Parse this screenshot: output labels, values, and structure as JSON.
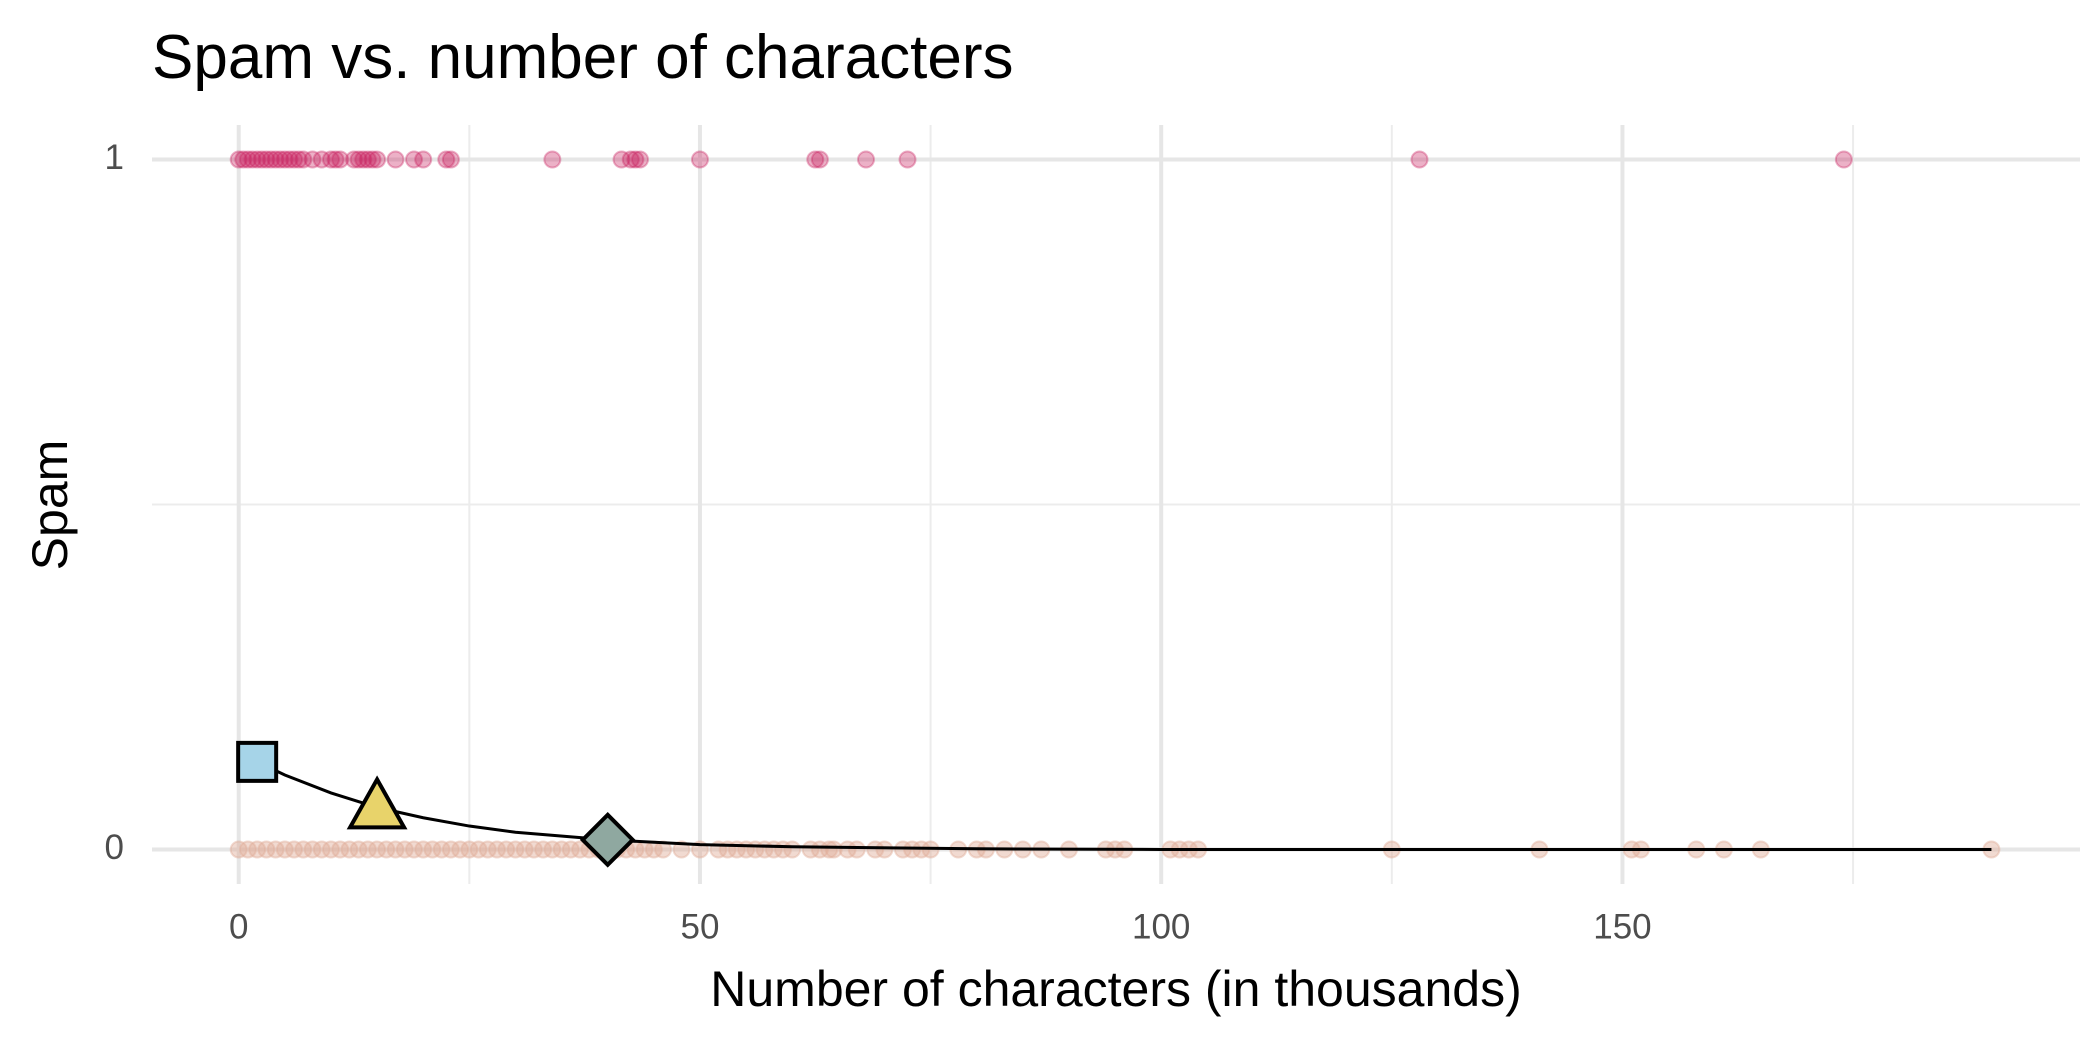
{
  "chart_data": {
    "type": "scatter",
    "title": "Spam vs. number of characters",
    "x_label": "Number of characters (in thousands)",
    "y_label": "Spam",
    "xlim": [
      -9.4,
      199.6
    ],
    "ylim": [
      -0.05,
      1.05
    ],
    "xticks": [
      0,
      50,
      100,
      150
    ],
    "yticks": [
      0,
      1
    ],
    "x_minor_ticks": [
      25,
      75,
      125,
      175
    ],
    "y_minor_ticks": [
      0.5
    ],
    "grid": true,
    "series": [
      {
        "color": "#c8205f",
        "opacity": 0.35,
        "x": [
          0,
          0.5,
          1,
          1.5,
          2,
          2.5,
          3,
          3.5,
          4,
          4.5,
          5,
          5.5,
          6,
          6.5,
          7,
          8,
          9,
          10,
          10.5,
          11,
          12.5,
          13,
          13.5,
          14,
          14.5,
          15,
          17,
          19,
          20,
          22.5,
          23,
          34,
          41.5,
          42.5,
          43,
          43.5,
          50,
          62.5,
          63,
          68,
          72.5,
          128,
          174
        ],
        "values": [
          1,
          1,
          1,
          1,
          1,
          1,
          1,
          1,
          1,
          1,
          1,
          1,
          1,
          1,
          1,
          1,
          1,
          1,
          1,
          1,
          1,
          1,
          1,
          1,
          1,
          1,
          1,
          1,
          1,
          1,
          1,
          1,
          1,
          1,
          1,
          1,
          1,
          1,
          1,
          1,
          1,
          1,
          1
        ]
      },
      {
        "color": "#dfae98",
        "opacity": 0.45,
        "x": [
          0,
          1,
          2,
          3,
          4,
          5,
          6,
          7,
          8,
          9,
          10,
          11,
          12,
          13,
          14,
          15,
          16,
          17,
          18,
          19,
          20,
          21,
          22,
          23,
          24,
          25,
          26,
          27,
          28,
          29,
          30,
          31,
          32,
          33,
          34,
          35,
          36,
          37,
          38,
          39,
          40,
          41,
          42,
          43,
          44,
          45,
          46,
          48,
          50,
          52,
          53,
          54,
          55,
          56,
          57,
          58,
          59,
          60,
          62,
          63,
          64,
          64.5,
          66,
          67,
          69,
          70,
          72,
          73,
          74,
          75,
          78,
          80,
          81,
          83,
          85,
          87,
          90,
          94,
          95,
          96,
          101,
          102,
          103,
          104,
          125,
          141,
          151,
          152,
          158,
          161,
          165,
          190
        ],
        "values": [
          0,
          0,
          0,
          0,
          0,
          0,
          0,
          0,
          0,
          0,
          0,
          0,
          0,
          0,
          0,
          0,
          0,
          0,
          0,
          0,
          0,
          0,
          0,
          0,
          0,
          0,
          0,
          0,
          0,
          0,
          0,
          0,
          0,
          0,
          0,
          0,
          0,
          0,
          0,
          0,
          0,
          0,
          0,
          0,
          0,
          0,
          0,
          0,
          0,
          0,
          0,
          0,
          0,
          0,
          0,
          0,
          0,
          0,
          0,
          0,
          0,
          0,
          0,
          0,
          0,
          0,
          0,
          0,
          0,
          0,
          0,
          0,
          0,
          0,
          0,
          0,
          0,
          0,
          0,
          0,
          0,
          0,
          0,
          0,
          0,
          0,
          0,
          0,
          0,
          0,
          0,
          0
        ]
      }
    ],
    "curve": {
      "color": "#000000",
      "x": [
        2,
        5,
        10,
        15,
        20,
        25,
        30,
        40,
        50,
        60,
        80,
        100,
        130,
        160,
        190
      ],
      "values": [
        0.127,
        0.108,
        0.082,
        0.061,
        0.046,
        0.034,
        0.025,
        0.014,
        0.007,
        0.004,
        0.001,
        0,
        0,
        0,
        0
      ]
    },
    "markers": [
      {
        "shape": "square",
        "x": 2,
        "y": 0.127,
        "color": "#a6d4e8"
      },
      {
        "shape": "triangle",
        "x": 15,
        "y": 0.061,
        "color": "#e8d36a"
      },
      {
        "shape": "diamond",
        "x": 40,
        "y": 0.014,
        "color": "#8fa8a0"
      }
    ]
  }
}
